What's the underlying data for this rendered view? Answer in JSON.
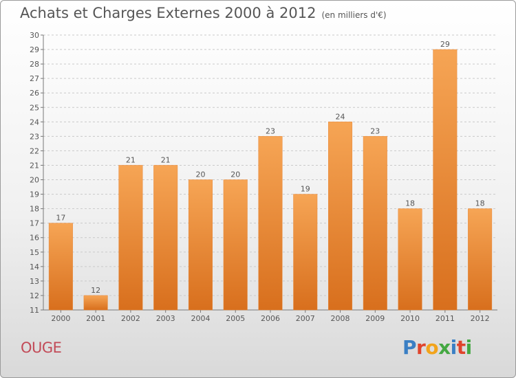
{
  "header": {
    "title": "Achats et Charges Externes 2000 à 2012",
    "subtitle": "(en milliers d'€)"
  },
  "footer": {
    "place": "OUGE",
    "logo_letters": [
      "P",
      "r",
      "o",
      "x",
      "i",
      "t",
      "i"
    ],
    "logo_colors": [
      "#3a7fc4",
      "#e0442c",
      "#f2a41c",
      "#44a842",
      "#3a7fc4",
      "#e0442c",
      "#44a842"
    ]
  },
  "chart_data": {
    "type": "bar",
    "categories": [
      "2000",
      "2001",
      "2002",
      "2003",
      "2004",
      "2005",
      "2006",
      "2007",
      "2008",
      "2009",
      "2010",
      "2011",
      "2012"
    ],
    "values": [
      17,
      12,
      21,
      21,
      20,
      20,
      23,
      19,
      24,
      23,
      18,
      29,
      18
    ],
    "data_labels": [
      "17",
      "12",
      "21",
      "21",
      "20",
      "20",
      "23",
      "19",
      "24",
      "23",
      "18",
      "29",
      "18"
    ],
    "ylim": [
      11,
      30
    ],
    "yticks": [
      "11",
      "12",
      "13",
      "14",
      "15",
      "16",
      "17",
      "18",
      "19",
      "20",
      "21",
      "22",
      "23",
      "24",
      "25",
      "26",
      "27",
      "28",
      "29",
      "30"
    ],
    "grid": true,
    "bar_color": "#f0923a"
  }
}
